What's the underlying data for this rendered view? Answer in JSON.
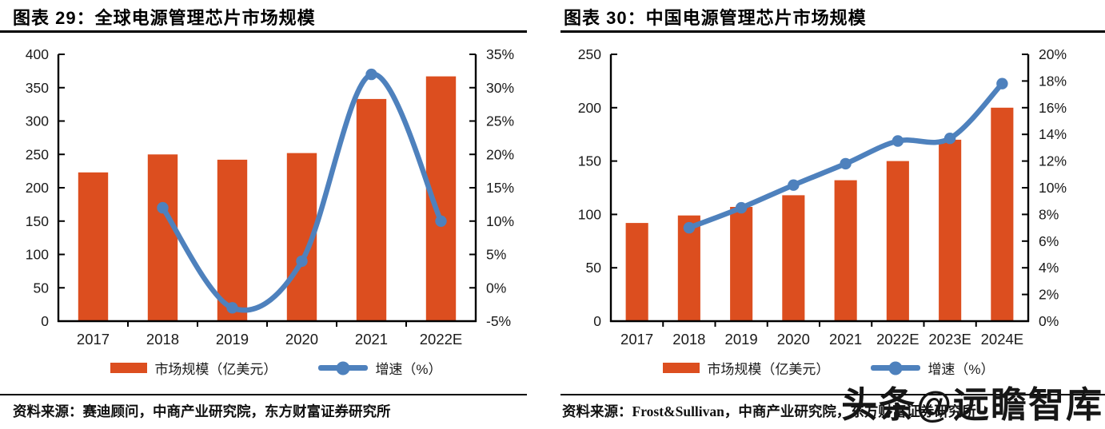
{
  "watermark": "头条@远瞻智库",
  "colors": {
    "bar": "#DC4E1F",
    "line": "#4E81BD",
    "axis": "#000000",
    "text": "#1A1A1A"
  },
  "panels": [
    {
      "title": "图表 29：全球电源管理芯片市场规模",
      "legend": {
        "bar": "市场规模（亿美元）",
        "line": "增速（%）"
      },
      "source": "资料来源：赛迪顾问，中商产业研究院，东方财富证券研究所"
    },
    {
      "title": "图表 30：中国电源管理芯片市场规模",
      "legend": {
        "bar": "市场规模（亿美元）",
        "line": "增速（%）"
      },
      "source": "资料来源：Frost&Sullivan，中商产业研究院，东方财富证券研究所"
    }
  ],
  "chart_data": [
    {
      "type": "combo",
      "title": "全球电源管理芯片市场规模",
      "categories": [
        "2017",
        "2018",
        "2019",
        "2020",
        "2021",
        "2022E"
      ],
      "series": [
        {
          "name": "市场规模（亿美元）",
          "kind": "bar",
          "axis": "left",
          "values": [
            223,
            250,
            242,
            252,
            333,
            367
          ]
        },
        {
          "name": "增速（%）",
          "kind": "line",
          "axis": "right",
          "values": [
            null,
            12,
            -3,
            4,
            32,
            10
          ]
        }
      ],
      "left_axis": {
        "min": 0,
        "max": 400,
        "step": 50,
        "ticks": [
          "0",
          "50",
          "100",
          "150",
          "200",
          "250",
          "300",
          "350",
          "400"
        ]
      },
      "right_axis": {
        "min": -5,
        "max": 35,
        "step": 5,
        "ticks": [
          "-5%",
          "0%",
          "5%",
          "10%",
          "15%",
          "20%",
          "25%",
          "30%",
          "35%"
        ]
      },
      "grid": false,
      "legend_position": "bottom"
    },
    {
      "type": "combo",
      "title": "中国电源管理芯片市场规模",
      "categories": [
        "2017",
        "2018",
        "2019",
        "2020",
        "2021",
        "2022E",
        "2023E",
        "2024E"
      ],
      "series": [
        {
          "name": "市场规模（亿美元）",
          "kind": "bar",
          "axis": "left",
          "values": [
            92,
            99,
            107,
            118,
            132,
            150,
            170,
            200
          ]
        },
        {
          "name": "增速（%）",
          "kind": "line",
          "axis": "right",
          "values": [
            null,
            7,
            8.5,
            10.2,
            11.8,
            13.5,
            13.7,
            17.8
          ]
        }
      ],
      "left_axis": {
        "min": 0,
        "max": 250,
        "step": 50,
        "ticks": [
          "0",
          "50",
          "100",
          "150",
          "200",
          "250"
        ]
      },
      "right_axis": {
        "min": 0,
        "max": 20,
        "step": 2,
        "ticks": [
          "0%",
          "2%",
          "4%",
          "6%",
          "8%",
          "10%",
          "12%",
          "14%",
          "16%",
          "18%",
          "20%"
        ]
      },
      "grid": false,
      "legend_position": "bottom"
    }
  ]
}
